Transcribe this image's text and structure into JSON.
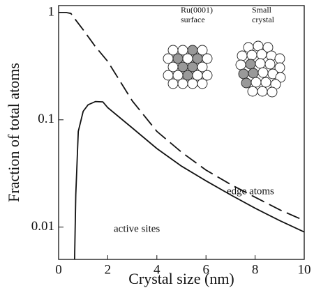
{
  "chart_data": {
    "type": "line",
    "xlabel": "Crystal size (nm)",
    "ylabel": "Fraction of total atoms",
    "xlim": [
      0,
      10
    ],
    "xticks": [
      0,
      2,
      4,
      6,
      8,
      10
    ],
    "ylim": [
      0.005,
      1.16
    ],
    "yticks": [
      0.01,
      0.1,
      1
    ],
    "yscale": "log",
    "annotations": [
      "Ru(0001)",
      "surface",
      "Small",
      "crystal"
    ],
    "series": [
      {
        "name": "edge atoms",
        "color": "#111111",
        "dash": true,
        "x": [
          0,
          0.3,
          0.5,
          0.7,
          1,
          1.5,
          2,
          3,
          4,
          5,
          6,
          7,
          8,
          9,
          10
        ],
        "values": [
          1,
          1,
          0.98,
          0.85,
          0.69,
          0.48,
          0.35,
          0.15,
          0.078,
          0.05,
          0.034,
          0.025,
          0.019,
          0.0145,
          0.0115
        ]
      },
      {
        "name": "active sites",
        "color": "#111111",
        "dash": false,
        "x": [
          0.65,
          0.7,
          0.8,
          1,
          1.2,
          1.5,
          1.8,
          2,
          3,
          4,
          5,
          6,
          7,
          8,
          9,
          10
        ],
        "values": [
          0.005,
          0.02,
          0.078,
          0.12,
          0.138,
          0.148,
          0.147,
          0.13,
          0.084,
          0.054,
          0.037,
          0.027,
          0.02,
          0.015,
          0.0115,
          0.009
        ]
      }
    ]
  }
}
